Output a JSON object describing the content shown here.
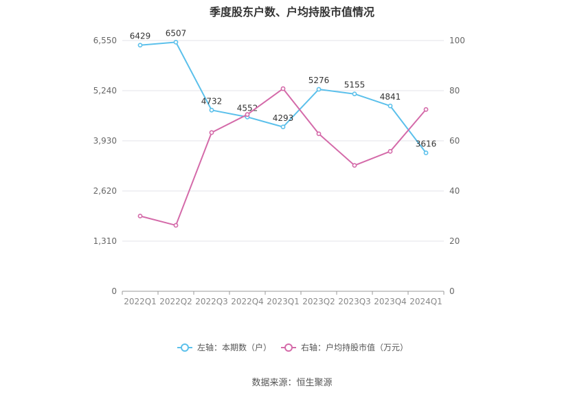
{
  "chart_data": {
    "type": "line",
    "title": "季度股东户数、户均持股市值情况",
    "categories": [
      "2022Q1",
      "2022Q2",
      "2022Q3",
      "2022Q4",
      "2023Q1",
      "2023Q2",
      "2023Q3",
      "2023Q4",
      "2024Q1"
    ],
    "left_axis": {
      "ticks": [
        "0",
        "1,310",
        "2,620",
        "3,930",
        "5,240",
        "6,550"
      ],
      "ylim": [
        0,
        6550
      ]
    },
    "right_axis": {
      "ticks": [
        "0",
        "20",
        "40",
        "60",
        "80",
        "100"
      ],
      "ylim": [
        0,
        100
      ]
    },
    "series": [
      {
        "name": "左轴：本期数（户）",
        "axis": "left",
        "color": "#5bc0eb",
        "values": [
          6429,
          6507,
          4732,
          4552,
          4293,
          5276,
          5155,
          4841,
          3616
        ],
        "labels": [
          "6429",
          "6507",
          "4732",
          "4552",
          "4293",
          "5276",
          "5155",
          "4841",
          "3616"
        ]
      },
      {
        "name": "右轴：户均持股市值（万元）",
        "axis": "right",
        "color": "#d46aa9",
        "values": [
          30.0,
          26.3,
          63.3,
          70.5,
          80.8,
          62.8,
          50.2,
          55.8,
          72.5
        ]
      }
    ],
    "grid": true,
    "legend_position": "bottom"
  },
  "source": "数据来源：恒生聚源"
}
